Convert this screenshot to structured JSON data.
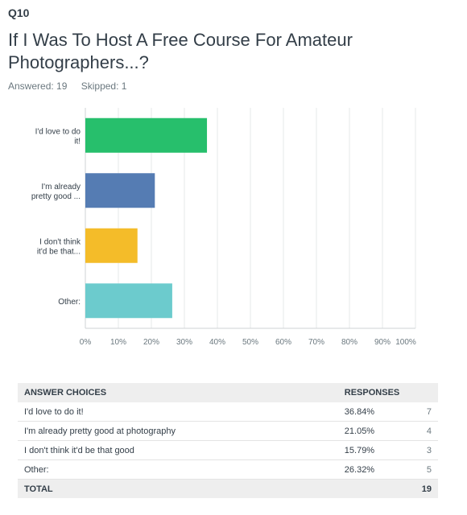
{
  "question": {
    "number": "Q10",
    "title": "If I Was To Host A Free Course For Amateur Photographers...?",
    "answered": "Answered: 19",
    "skipped": "Skipped: 1"
  },
  "chart_data": {
    "type": "bar",
    "orientation": "horizontal",
    "categories": [
      [
        "I'd love to do",
        "it!"
      ],
      [
        "I'm already",
        "pretty good ..."
      ],
      [
        "I don't think",
        "it'd be that..."
      ],
      [
        "Other:"
      ]
    ],
    "values": [
      36.84,
      21.05,
      15.79,
      26.32
    ],
    "colors": [
      "#27bf6c",
      "#557cb3",
      "#f4bc29",
      "#6ccbcd"
    ],
    "xlim": [
      0,
      100
    ],
    "xticks": [
      "0%",
      "10%",
      "20%",
      "30%",
      "40%",
      "50%",
      "60%",
      "70%",
      "80%",
      "90%",
      "100%"
    ],
    "grid": true
  },
  "table": {
    "headers": [
      "ANSWER CHOICES",
      "RESPONSES",
      ""
    ],
    "rows": [
      {
        "choice": "I'd love to do it!",
        "percent": "36.84%",
        "count": "7"
      },
      {
        "choice": "I'm already pretty good at photography",
        "percent": "21.05%",
        "count": "4"
      },
      {
        "choice": "I don't think it'd be that good",
        "percent": "15.79%",
        "count": "3"
      },
      {
        "choice": "Other:",
        "percent": "26.32%",
        "count": "5"
      }
    ],
    "total_label": "TOTAL",
    "total_count": "19"
  }
}
